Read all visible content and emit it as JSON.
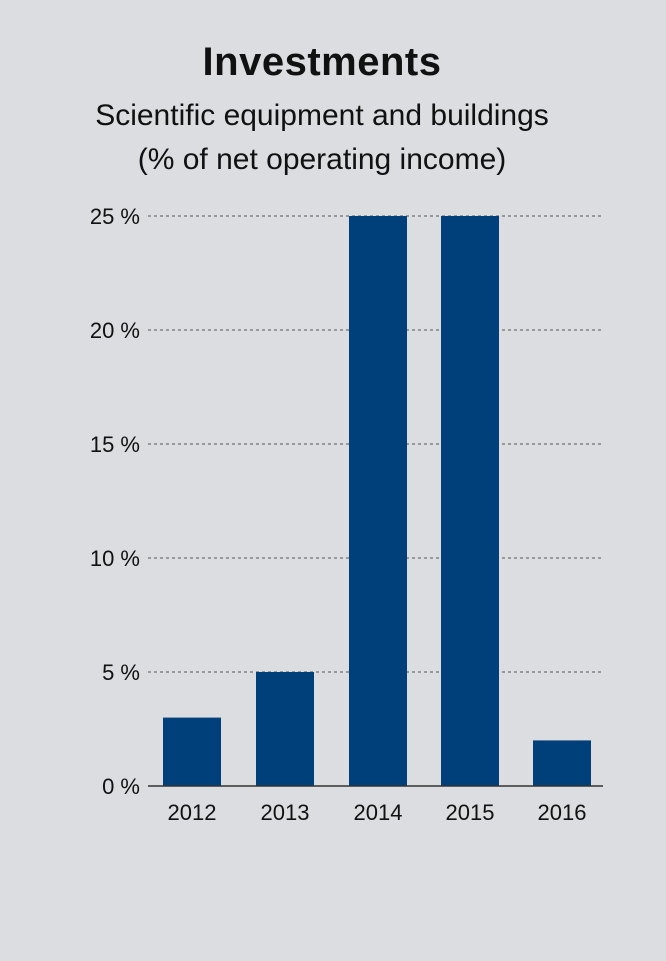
{
  "chart_data": {
    "type": "bar",
    "title": "Investments",
    "subtitle": [
      "Scientific equipment and buildings",
      "(% of net operating income)"
    ],
    "categories": [
      "2012",
      "2013",
      "2014",
      "2015",
      "2016"
    ],
    "values": [
      3,
      5,
      25,
      25,
      2
    ],
    "ylim": [
      0,
      25
    ],
    "yticks": [
      0,
      5,
      10,
      15,
      20,
      25
    ],
    "ytick_labels": [
      "0 %",
      "5 %",
      "10 %",
      "15 %",
      "20 %",
      "25 %"
    ],
    "grid": true,
    "bar_color": "#00407a",
    "xlabel": "",
    "ylabel": ""
  }
}
